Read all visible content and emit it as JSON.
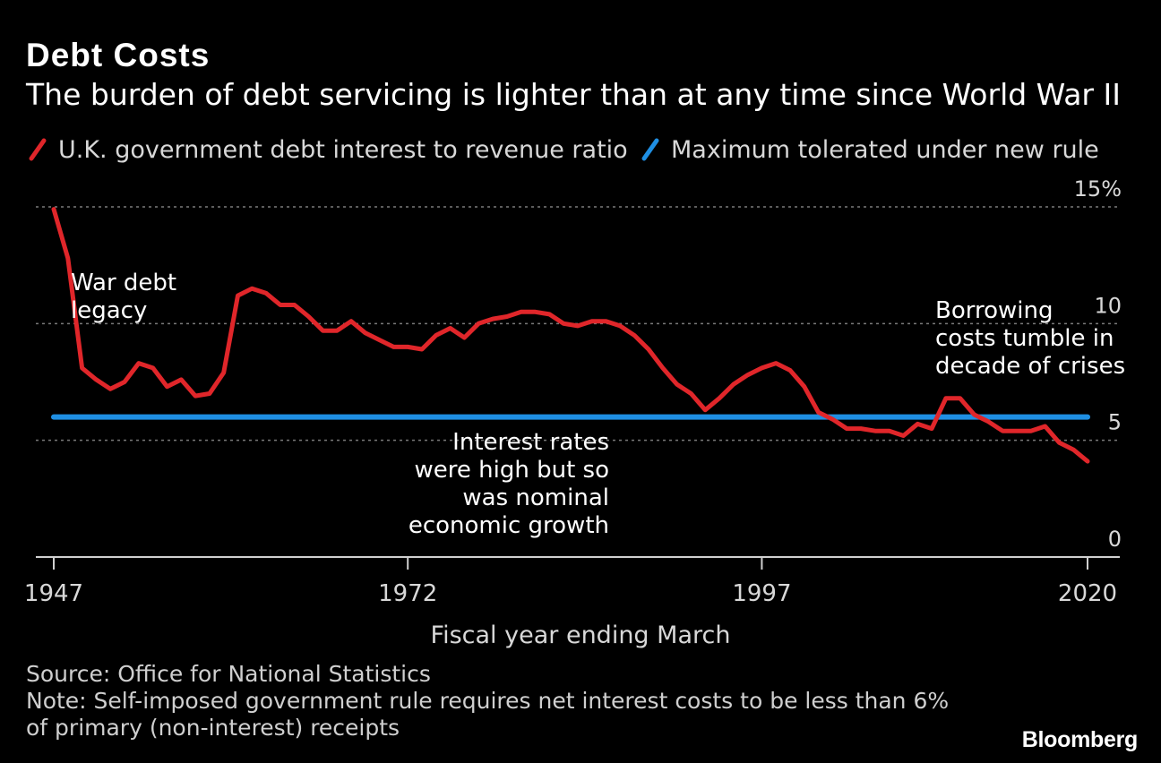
{
  "title": "Debt Costs",
  "subtitle": "The burden of debt servicing is lighter than at any time since World War II",
  "colors": {
    "background": "#000000",
    "series_red": "#e0262a",
    "series_blue": "#1f8fe3",
    "grid": "#7a7a7a",
    "axis": "#d0d0d0",
    "text": "#ffffff"
  },
  "legend": [
    {
      "name": "U.K. government debt interest to revenue ratio",
      "color": "#e0262a"
    },
    {
      "name": "Maximum tolerated under new rule",
      "color": "#1f8fe3"
    }
  ],
  "annotations": {
    "war_debt": [
      "War debt",
      "legacy"
    ],
    "interest_rates": [
      "Interest rates",
      "were high but so",
      "was nominal",
      "economic growth"
    ],
    "borrowing": [
      "Borrowing",
      "costs tumble in",
      "decade of crises"
    ]
  },
  "source": "Source: Office for National Statistics",
  "note_line1": "Note: Self-imposed government rule requires net interest costs to be less than 6%",
  "note_line2": "of primary (non-interest) receipts",
  "brand": "Bloomberg",
  "chart_data": {
    "type": "line",
    "xlabel": "Fiscal year ending March",
    "ylabel": "",
    "ylim": [
      0,
      15
    ],
    "xlim": [
      1947,
      2022
    ],
    "x_ticks": [
      1947,
      1972,
      1997,
      2020
    ],
    "y_ticks": [
      0,
      5,
      10,
      15
    ],
    "y_tick_labels": [
      "0",
      "5",
      "10",
      "15%"
    ],
    "grid": true,
    "legend_position": "top",
    "series": [
      {
        "name": "U.K. government debt interest to revenue ratio",
        "x": [
          1947,
          1948,
          1949,
          1950,
          1951,
          1952,
          1953,
          1954,
          1955,
          1956,
          1957,
          1958,
          1959,
          1960,
          1961,
          1962,
          1963,
          1964,
          1965,
          1966,
          1967,
          1968,
          1969,
          1970,
          1971,
          1972,
          1973,
          1974,
          1975,
          1976,
          1977,
          1978,
          1979,
          1980,
          1981,
          1982,
          1983,
          1984,
          1985,
          1986,
          1987,
          1988,
          1989,
          1990,
          1991,
          1992,
          1993,
          1994,
          1995,
          1996,
          1997,
          1998,
          1999,
          2000,
          2001,
          2002,
          2003,
          2004,
          2005,
          2006,
          2007,
          2008,
          2009,
          2010,
          2011,
          2012,
          2013,
          2014,
          2015,
          2016,
          2017,
          2018,
          2019,
          2020
        ],
        "values": [
          14.9,
          12.8,
          8.1,
          7.6,
          7.2,
          7.5,
          8.3,
          8.1,
          7.3,
          7.6,
          6.9,
          7.0,
          7.9,
          11.2,
          11.5,
          11.3,
          10.8,
          10.8,
          10.3,
          9.7,
          9.7,
          10.1,
          9.6,
          9.3,
          9.0,
          9.0,
          8.9,
          9.5,
          9.8,
          9.4,
          10.0,
          10.2,
          10.3,
          10.5,
          10.5,
          10.4,
          10.0,
          9.9,
          10.1,
          10.1,
          9.9,
          9.5,
          8.9,
          8.1,
          7.4,
          7.0,
          6.3,
          6.8,
          7.4,
          7.8,
          8.1,
          8.3,
          8.0,
          7.3,
          6.2,
          5.9,
          5.5,
          5.5,
          5.4,
          5.4,
          5.2,
          5.7,
          5.5,
          6.8,
          6.8,
          6.1,
          5.8,
          5.4,
          5.4,
          5.4,
          5.6,
          4.9,
          4.6,
          4.1
        ]
      },
      {
        "name": "Maximum tolerated under new rule",
        "x": [
          1947,
          2020
        ],
        "values": [
          6,
          6
        ]
      }
    ]
  }
}
